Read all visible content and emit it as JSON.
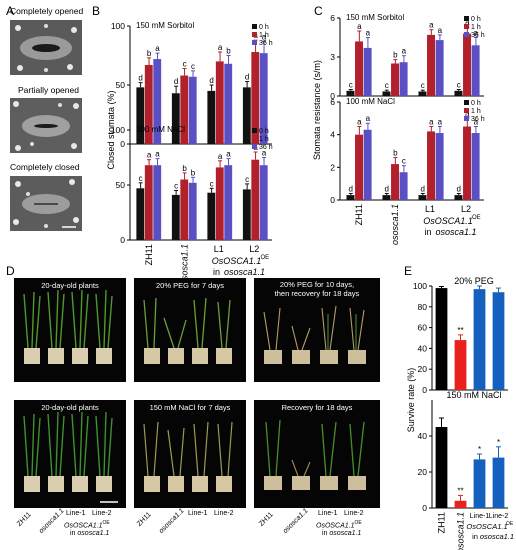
{
  "panels": {
    "a": "A",
    "b": "B",
    "c": "C",
    "d": "D",
    "e": "E"
  },
  "panelA": {
    "labels": [
      "Completely opened",
      "Partially  opened",
      "Completely closed"
    ]
  },
  "panelD": {
    "titles": [
      "20-day-old plants",
      "20% PEG for 7 days",
      "20% PEG for 10 days,",
      "then recovery for 18 days",
      "20-day-old plants",
      "150 mM NaCl for 7 days",
      "Recovery for 18 days"
    ],
    "genotypes": {
      "zh11": "ZH11",
      "mutant": "ososca1.1",
      "line1": "Line-1",
      "line2": "Line-2",
      "oe_base": "OsOSCA1.1",
      "oe_sup": "OE",
      "in": "in",
      "in_mut": "ososca1.1"
    }
  },
  "legend": [
    "0 h",
    "1 h",
    "36 h"
  ],
  "colors": {
    "0h": "#111111",
    "1h": "#b2202c",
    "36h": "#5a50c4",
    "zh11": "#000000",
    "mutant": "#e8211e",
    "line": "#1560bd"
  },
  "chart_data": [
    {
      "id": "B-top",
      "type": "bar",
      "subtitle": "150 mM Sorbitol",
      "ylabel": "Closed stomata (%)",
      "ylim": [
        0,
        100
      ],
      "yticks": [
        0,
        50,
        100
      ],
      "categories": [
        "ZH11",
        "ososca1.1",
        "L1",
        "L2"
      ],
      "series": [
        {
          "name": "0 h",
          "values": [
            48,
            43,
            45,
            48
          ],
          "errors": [
            4,
            6,
            5,
            5
          ]
        },
        {
          "name": "1 h",
          "values": [
            67,
            58,
            70,
            78
          ],
          "errors": [
            6,
            6,
            8,
            10
          ]
        },
        {
          "name": "36 h",
          "values": [
            72,
            57,
            68,
            77
          ],
          "errors": [
            5,
            5,
            7,
            10
          ]
        }
      ],
      "letters": [
        [
          "d",
          "b",
          "a"
        ],
        [
          "d",
          "c",
          "c"
        ],
        [
          "d",
          "a",
          "b"
        ],
        [
          "d",
          "a",
          "a"
        ]
      ]
    },
    {
      "id": "B-bottom",
      "type": "bar",
      "subtitle": "100 mM NaCl",
      "ylabel": "Closed stomata (%)",
      "ylim": [
        0,
        100
      ],
      "yticks": [
        0,
        50,
        100
      ],
      "categories": [
        "ZH11",
        "ososca1.1",
        "L1",
        "L2"
      ],
      "series": [
        {
          "name": "0 h",
          "values": [
            47,
            41,
            43,
            46
          ],
          "errors": [
            5,
            4,
            4,
            5
          ]
        },
        {
          "name": "1 h",
          "values": [
            68,
            55,
            66,
            73
          ],
          "errors": [
            5,
            6,
            6,
            7
          ]
        },
        {
          "name": "36 h",
          "values": [
            68,
            52,
            68,
            68
          ],
          "errors": [
            6,
            5,
            6,
            7
          ]
        }
      ],
      "letters": [
        [
          "c",
          "a",
          "a"
        ],
        [
          "c",
          "b",
          "b"
        ],
        [
          "c",
          "a",
          "a"
        ],
        [
          "c",
          "a",
          "a"
        ]
      ]
    },
    {
      "id": "C-top",
      "type": "bar",
      "subtitle": "150 mM Sorbitol",
      "ylabel": "Stomata resistance (s/m)",
      "ylim": [
        0,
        6
      ],
      "yticks": [
        0,
        3.0,
        6.0
      ],
      "categories": [
        "ZH11",
        "ososca1.1",
        "L1",
        "L2"
      ],
      "series": [
        {
          "name": "0 h",
          "values": [
            0.4,
            0.35,
            0.35,
            0.4
          ],
          "errors": [
            0.1,
            0.1,
            0.1,
            0.1
          ]
        },
        {
          "name": "1 h",
          "values": [
            4.2,
            2.5,
            4.7,
            4.8
          ],
          "errors": [
            0.8,
            0.3,
            0.4,
            0.5
          ]
        },
        {
          "name": "36 h",
          "values": [
            3.7,
            2.6,
            4.3,
            3.9
          ],
          "errors": [
            0.8,
            0.5,
            0.4,
            0.6
          ]
        }
      ],
      "letters": [
        [
          "c",
          "a",
          "a"
        ],
        [
          "c",
          "b",
          "a"
        ],
        [
          "c",
          "a",
          "a"
        ],
        [
          "c",
          "a",
          "a"
        ]
      ]
    },
    {
      "id": "C-bottom",
      "type": "bar",
      "subtitle": "100 mM NaCl",
      "ylabel": "Stomata resistance (s/m)",
      "ylim": [
        0,
        6
      ],
      "yticks": [
        0,
        2.0,
        4.0,
        6.0
      ],
      "categories": [
        "ZH11",
        "ososca1.1",
        "L1",
        "L2"
      ],
      "series": [
        {
          "name": "0 h",
          "values": [
            0.3,
            0.3,
            0.3,
            0.3
          ],
          "errors": [
            0.1,
            0.1,
            0.1,
            0.1
          ]
        },
        {
          "name": "1 h",
          "values": [
            4.0,
            2.2,
            4.2,
            4.5
          ],
          "errors": [
            0.5,
            0.4,
            0.3,
            0.5
          ]
        },
        {
          "name": "36 h",
          "values": [
            4.3,
            1.7,
            4.1,
            4.1
          ],
          "errors": [
            0.4,
            0.4,
            0.4,
            0.4
          ]
        }
      ],
      "letters": [
        [
          "d",
          "a",
          "a"
        ],
        [
          "d",
          "b",
          "c"
        ],
        [
          "d",
          "a",
          "a"
        ],
        [
          "d",
          "a",
          "a"
        ]
      ]
    },
    {
      "id": "E-top",
      "type": "bar",
      "subtitle": "20% PEG",
      "ylabel": "Survive rate (%)",
      "ylim": [
        0,
        100
      ],
      "yticks": [
        0,
        20,
        40,
        60,
        80,
        100
      ],
      "categories": [
        "ZH11",
        "ososca1.1",
        "Line-1",
        "Line-2"
      ],
      "values": [
        98,
        48,
        97,
        94
      ],
      "errors": [
        1.5,
        5,
        3,
        4
      ],
      "marks": [
        "",
        "**",
        "",
        ""
      ]
    },
    {
      "id": "E-bottom",
      "type": "bar",
      "subtitle": "150 mM NaCl",
      "ylabel": "Survive rate (%)",
      "ylim": [
        0,
        60
      ],
      "yticks": [
        0,
        20,
        40
      ],
      "categories": [
        "ZH11",
        "ososca1.1",
        "Line-1",
        "Line-2"
      ],
      "values": [
        45,
        4,
        27,
        28
      ],
      "errors": [
        5,
        3,
        3,
        6
      ],
      "marks": [
        "",
        "**",
        "*",
        "*"
      ]
    }
  ]
}
